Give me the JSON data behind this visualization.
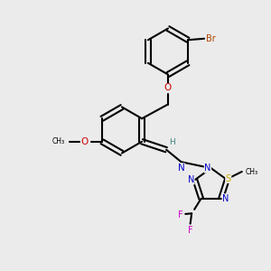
{
  "background_color": "#ebebeb",
  "bond_color": "#000000",
  "bond_lw": 1.5,
  "figsize": [
    3.0,
    3.0
  ],
  "dpi": 100,
  "colors": {
    "C": "#000000",
    "N": "#0000cc",
    "O": "#cc0000",
    "S": "#ccaa00",
    "F": "#cc00cc",
    "Br": "#aa4400",
    "H": "#408080"
  }
}
